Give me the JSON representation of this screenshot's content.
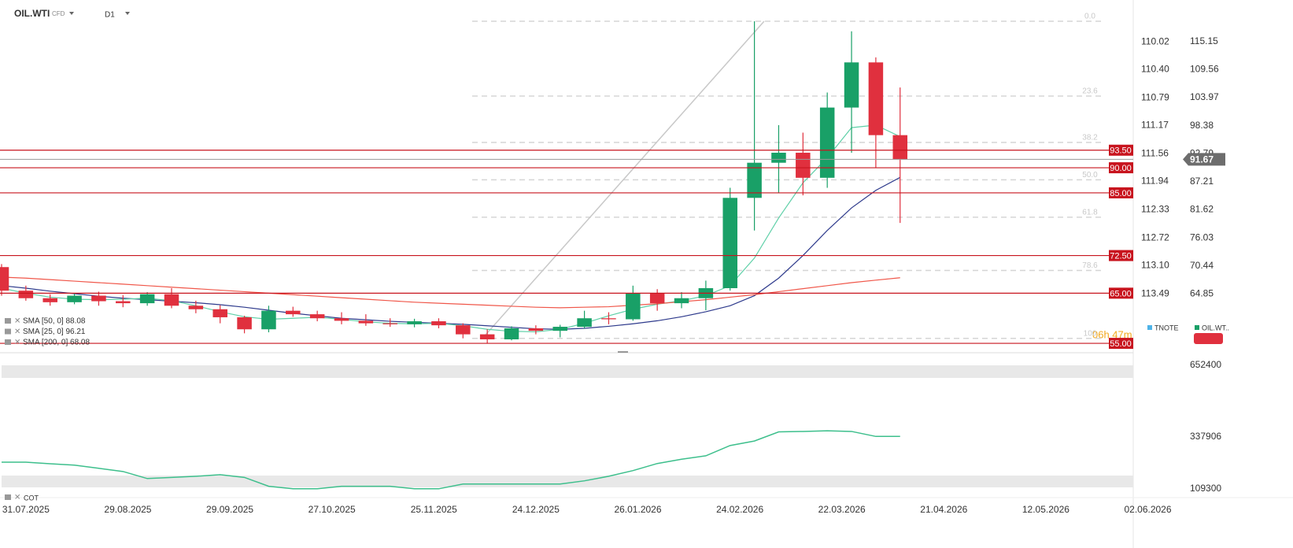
{
  "chart_data": [
    {
      "type": "candlestick",
      "symbol": "OIL.WTI",
      "instrument_type": "CFD",
      "timeframe": "D1",
      "countdown": "06h 47m",
      "compare_legend": [
        {
          "name": "TNOTE",
          "color": "#4fb3e8"
        },
        {
          "name": "OIL.WT..",
          "color": "#19a067"
        }
      ],
      "x": [
        -5,
        0,
        5,
        10,
        15,
        20,
        25,
        30,
        35,
        40,
        45,
        50,
        55,
        60,
        65,
        70,
        75,
        80,
        85,
        90,
        95,
        100,
        105,
        110,
        115,
        120,
        125,
        130,
        135,
        140,
        145,
        150,
        155,
        160,
        165,
        170,
        175,
        180
      ],
      "open": [
        70.2,
        65.5,
        64,
        63.2,
        64.5,
        63.4,
        63,
        64.8,
        62.5,
        61.8,
        60.2,
        57.8,
        61.5,
        60.8,
        60,
        59.5,
        59,
        58.8,
        59.4,
        58.6,
        56.8,
        55.8,
        58,
        57.5,
        58.3,
        60,
        59.8,
        65,
        63,
        64,
        66,
        84,
        91,
        93,
        88,
        102,
        111,
        96.5
      ],
      "high": [
        70.8,
        66.5,
        64.8,
        65,
        65.3,
        64.6,
        65.2,
        66,
        63.5,
        62.6,
        60.5,
        62.5,
        62.3,
        61.5,
        61.2,
        60.8,
        60,
        59.9,
        60,
        59,
        57.8,
        58.4,
        58.6,
        58.7,
        61.5,
        61.2,
        66.5,
        65.8,
        65.2,
        67.5,
        86,
        119.2,
        98.5,
        97,
        105,
        117.2,
        112,
        106
      ],
      "low": [
        64.5,
        63.5,
        62.5,
        62.8,
        62.5,
        62.2,
        62.5,
        62,
        61,
        59,
        57,
        57.2,
        60.3,
        59.4,
        58.8,
        58.5,
        58.3,
        58.2,
        58,
        56,
        55,
        55.6,
        56.8,
        56.2,
        58,
        58.8,
        59.5,
        61.5,
        62,
        61.6,
        65.5,
        77.5,
        85,
        84.5,
        86,
        93,
        90,
        79
      ],
      "close": [
        65.5,
        64,
        63.2,
        64.5,
        63.4,
        63,
        64.8,
        62.5,
        61.8,
        60.2,
        57.8,
        61.5,
        60.8,
        60,
        59.5,
        59,
        58.8,
        59.4,
        58.6,
        56.8,
        55.8,
        58,
        57.5,
        58.3,
        60,
        59.8,
        65,
        63,
        64,
        66,
        84,
        91,
        93,
        88,
        102,
        111,
        96.5,
        91.67
      ],
      "up_color": "#19a067",
      "down_color": "#e0303e",
      "series": [
        {
          "name": "SMA [50, 0] 88.08",
          "color": "#2e3a8c",
          "values": [
            66.5,
            66.0,
            65.4,
            64.9,
            64.4,
            64.0,
            63.7,
            63.4,
            63.1,
            62.7,
            62.2,
            61.6,
            61.0,
            60.5,
            60.0,
            59.7,
            59.4,
            59.2,
            59.0,
            58.8,
            58.5,
            58.2,
            57.9,
            57.8,
            58.0,
            58.4,
            58.9,
            59.5,
            60.3,
            61.3,
            62.5,
            64.5,
            68.0,
            72.5,
            77.5,
            82.0,
            85.5,
            88.08
          ]
        },
        {
          "name": "SMA [25, 0] 96.21",
          "color": "#5fd0a8",
          "values": [
            66.0,
            65.0,
            64.2,
            63.8,
            63.7,
            63.8,
            64.0,
            63.5,
            62.5,
            61.3,
            60.3,
            59.8,
            60.0,
            60.2,
            59.8,
            59.3,
            59.0,
            58.9,
            59.0,
            58.5,
            57.8,
            57.4,
            57.3,
            57.8,
            59.0,
            60.5,
            61.8,
            62.8,
            63.5,
            64.5,
            66.5,
            72.0,
            80.0,
            87.0,
            92.0,
            98.0,
            98.5,
            96.21
          ]
        },
        {
          "name": "SMA [200, 0] 68.08",
          "color": "#f0574a",
          "values": [
            68.2,
            68.0,
            67.7,
            67.4,
            67.1,
            66.8,
            66.5,
            66.2,
            65.9,
            65.6,
            65.3,
            65.0,
            64.7,
            64.4,
            64.1,
            63.8,
            63.5,
            63.2,
            63.0,
            62.8,
            62.6,
            62.4,
            62.2,
            62.1,
            62.2,
            62.3,
            62.6,
            62.9,
            63.3,
            63.7,
            64.2,
            64.7,
            65.3,
            65.9,
            66.5,
            67.1,
            67.6,
            68.08
          ]
        }
      ],
      "levels": [
        {
          "value": 93.5,
          "label": "93.50"
        },
        {
          "value": 90,
          "label": "90.00"
        },
        {
          "value": 85,
          "label": "85.00"
        },
        {
          "value": 72.5,
          "label": "72.50"
        },
        {
          "value": 65,
          "label": "65.00"
        },
        {
          "value": 55,
          "label": "55.00"
        }
      ],
      "level_color": "#c8141e",
      "current_price": 91.67,
      "fibonacci": {
        "high": 119.2,
        "low": 56.0,
        "x_start": 94,
        "x_end": 152,
        "ratios": [
          {
            "value": 0,
            "label": "0.0"
          },
          23.6,
          38.2,
          {
            "value": 50,
            "label": "50.0"
          },
          61.8,
          78.6,
          100
        ]
      },
      "xlim": [
        -5,
        228
      ],
      "xticks": [
        {
          "value": 0,
          "label": "31.07.2025"
        },
        {
          "value": 21,
          "label": "29.08.2025"
        },
        {
          "value": 42,
          "label": "29.09.2025"
        },
        {
          "value": 63,
          "label": "27.10.2025"
        },
        {
          "value": 84,
          "label": "25.11.2025"
        },
        {
          "value": 105,
          "label": "24.12.2025"
        },
        {
          "value": 126,
          "label": "26.01.2026"
        },
        {
          "value": 147,
          "label": "24.02.2026"
        },
        {
          "value": 168,
          "label": "22.03.2026"
        },
        {
          "value": 189,
          "label": "21.04.2026"
        },
        {
          "value": 210,
          "label": "12.05.2026"
        },
        {
          "value": 231,
          "label": "02.06.2026"
        }
      ],
      "ylim": [
        53.6,
        120.3
      ],
      "yticks": [
        115.15,
        109.56,
        103.97,
        98.38,
        92.79,
        87.21,
        81.62,
        76.03,
        70.44,
        64.85
      ],
      "y2lim": [
        109.66,
        114.27
      ],
      "y2_inverted": true,
      "y2ticks": [
        110.02,
        {
          "value": 110.4,
          "label": "110.40"
        },
        110.79,
        111.17,
        111.56,
        111.94,
        112.33,
        112.72,
        {
          "value": 113.1,
          "label": "113.10"
        },
        113.49
      ]
    },
    {
      "type": "line",
      "title": "COT",
      "x": [
        -5,
        0,
        5,
        10,
        15,
        20,
        25,
        30,
        35,
        40,
        45,
        50,
        55,
        60,
        65,
        70,
        75,
        80,
        85,
        90,
        95,
        100,
        105,
        110,
        115,
        120,
        125,
        130,
        135,
        140,
        145,
        150,
        155,
        160,
        165,
        170,
        175,
        180
      ],
      "series": [
        {
          "color": "#3dbf8c",
          "values": [
            227000,
            227000,
            220000,
            214000,
            200000,
            186000,
            155000,
            160000,
            165000,
            172000,
            160000,
            121000,
            110000,
            110000,
            121000,
            121000,
            121000,
            110000,
            110000,
            131000,
            131000,
            131000,
            131000,
            131000,
            145000,
            165000,
            190000,
            221000,
            240000,
            255000,
            300000,
            320000,
            360000,
            362000,
            365000,
            362000,
            340000,
            340000
          ]
        }
      ],
      "ylim": [
        95500,
        683450
      ],
      "yticks": [
        652400,
        337906,
        109300
      ]
    }
  ]
}
